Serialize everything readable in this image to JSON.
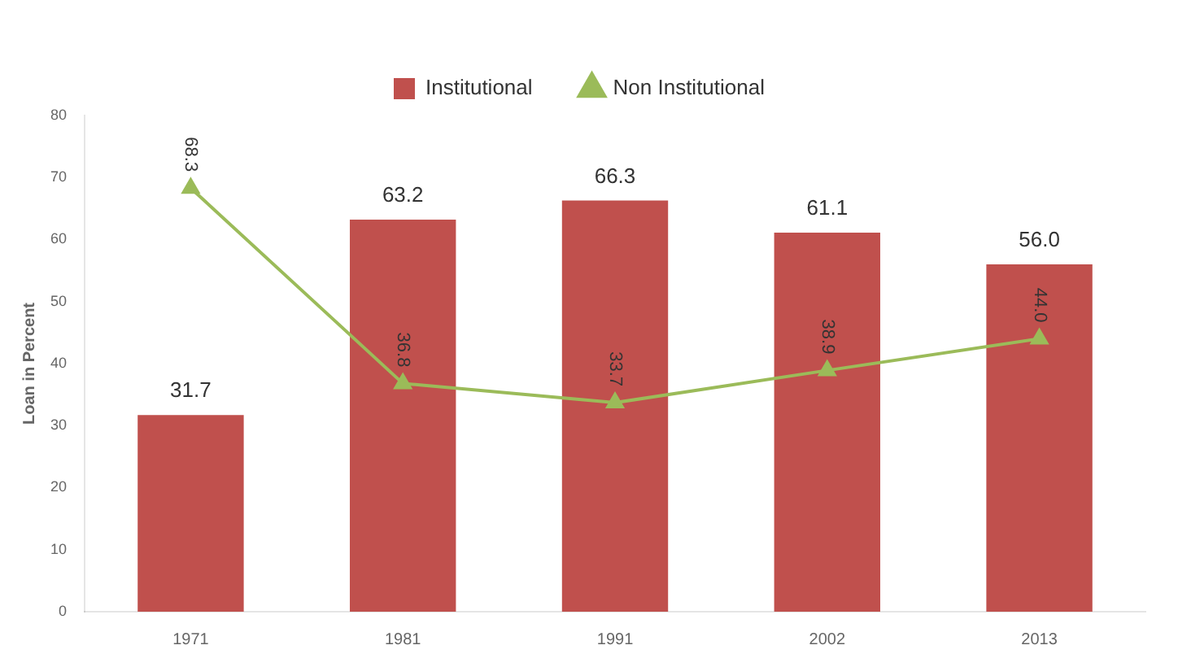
{
  "chart_data": {
    "type": "bar",
    "ylabel": "Loan in Percent",
    "categories": [
      "1971",
      "1981",
      "1991",
      "2002",
      "2013"
    ],
    "series": [
      {
        "name": "Institutional",
        "color": "#c0504d",
        "values": [
          31.7,
          63.2,
          66.3,
          61.1,
          56.0
        ],
        "value_labels": [
          "31.7",
          "63.2",
          "66.3",
          "61.1",
          "56.0"
        ]
      },
      {
        "name": "Non Institutional",
        "type": "line",
        "color": "#9bbb59",
        "marker": "triangle",
        "values": [
          68.3,
          36.8,
          33.7,
          38.9,
          44.0
        ],
        "value_labels": [
          "68.3",
          "36.8",
          "33.7",
          "38.9",
          "44.0"
        ]
      }
    ],
    "ylim": [
      0,
      80
    ],
    "yticks": [
      0,
      10,
      20,
      30,
      40,
      50,
      60,
      70,
      80
    ],
    "grid": false,
    "legend": "top"
  }
}
